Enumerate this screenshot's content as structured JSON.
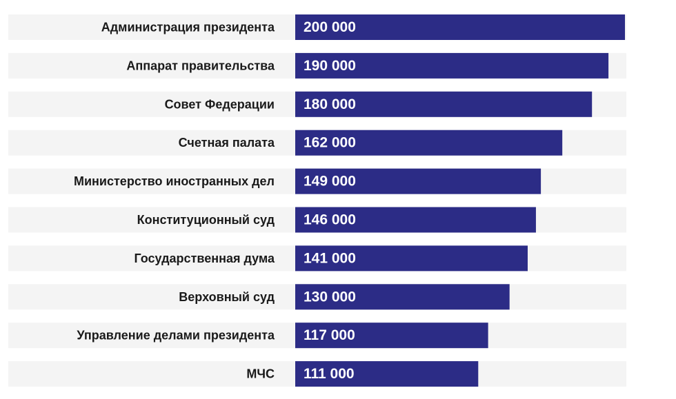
{
  "chart_data": {
    "type": "bar",
    "orientation": "horizontal",
    "categories": [
      "Администрация президента",
      "Аппарат правительства",
      "Совет Федерации",
      "Счетная палата",
      "Министерство иностранных дел",
      "Конституционный суд",
      "Государственная дума",
      "Верховный суд",
      "Управление делами президента",
      "МЧС"
    ],
    "values": [
      200000,
      190000,
      180000,
      162000,
      149000,
      146000,
      141000,
      130000,
      117000,
      111000
    ],
    "value_labels": [
      "200 000",
      "190 000",
      "180 000",
      "162 000",
      "149 000",
      "146 000",
      "141 000",
      "130 000",
      "117 000",
      "111 000"
    ],
    "xlim": [
      0,
      200000
    ],
    "grid": false,
    "legend": "none",
    "colors": {
      "bar": "#2c2c86",
      "row_band": "#f4f4f4",
      "label_text": "#1a1a1a",
      "value_text": "#ffffff"
    }
  }
}
